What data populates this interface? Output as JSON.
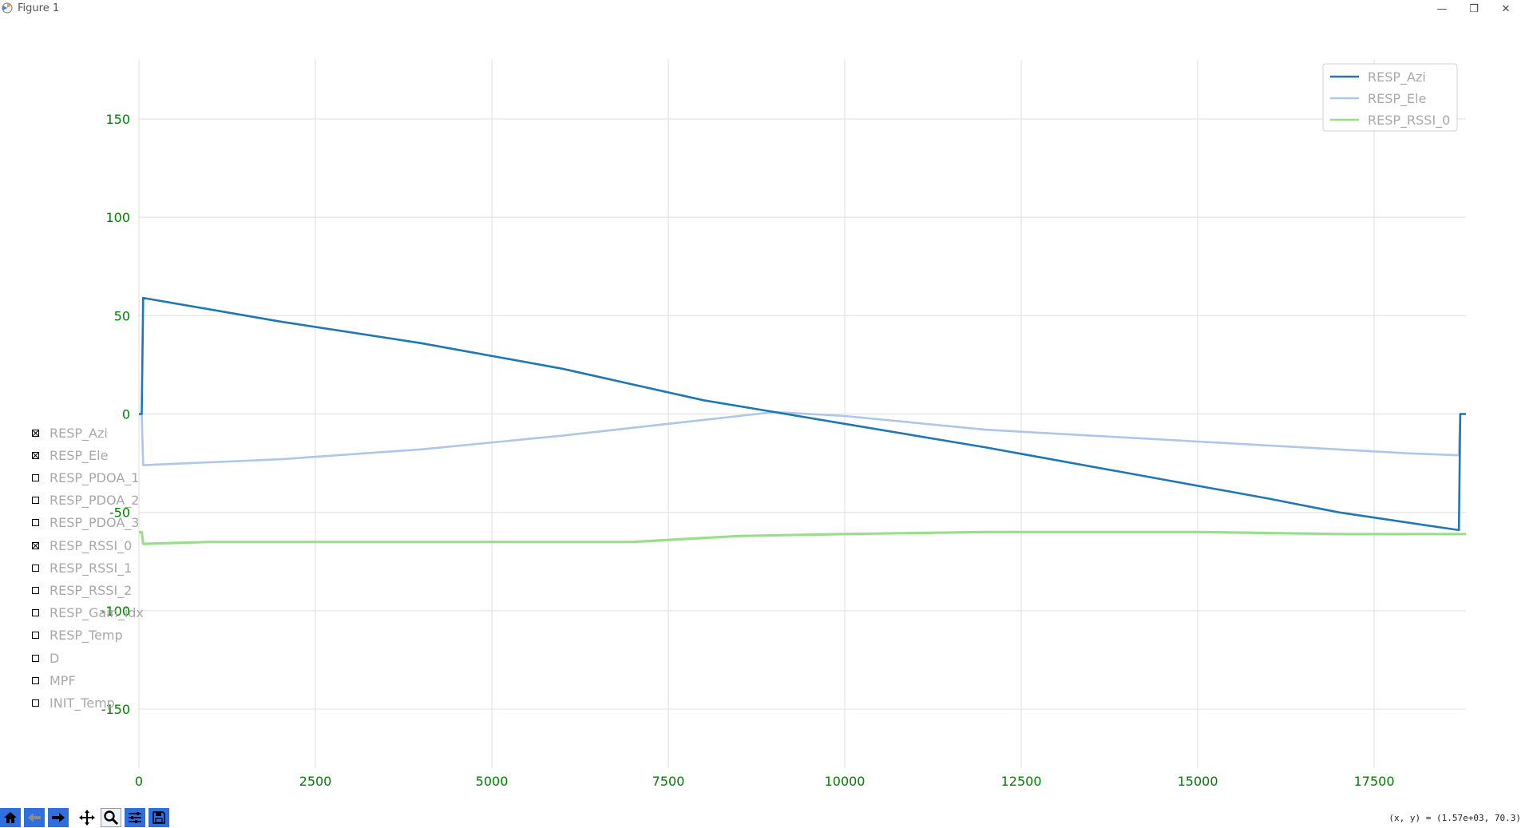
{
  "window": {
    "title": "Figure 1",
    "minimize_glyph": "—",
    "restore_glyph": "❐",
    "close_glyph": "✕"
  },
  "chart_data": {
    "type": "line",
    "title": "",
    "xlabel": "",
    "ylabel": "",
    "xlim": [
      0,
      18800
    ],
    "ylim": [
      -180,
      180
    ],
    "grid": true,
    "legend_placement": "top-right",
    "x_ticks": [
      0,
      2500,
      5000,
      7500,
      10000,
      12500,
      15000,
      17500
    ],
    "y_ticks": [
      150,
      100,
      50,
      0,
      -50,
      -100,
      -150
    ],
    "tick_color": "#008000",
    "series": [
      {
        "name": "RESP_Azi",
        "color": "#1f77b4",
        "x": [
          0,
          40,
          60,
          2000,
          4000,
          6000,
          8000,
          9000,
          10000,
          12000,
          14000,
          16000,
          17000,
          18700,
          18720,
          18760,
          18800
        ],
        "y": [
          0,
          0,
          59,
          47,
          36,
          23,
          7,
          1,
          -5,
          -17,
          -30,
          -43,
          -50,
          -59,
          0,
          0,
          0
        ]
      },
      {
        "name": "RESP_Ele",
        "color": "#aec7e8",
        "x": [
          0,
          40,
          60,
          2000,
          4000,
          6000,
          7500,
          8500,
          9000,
          10000,
          12000,
          14000,
          16000,
          18000,
          18700,
          18720,
          18800
        ],
        "y": [
          0,
          0,
          -26,
          -23,
          -18,
          -11,
          -5,
          -1,
          1,
          -1,
          -8,
          -12,
          -16,
          -20,
          -21,
          0,
          0
        ]
      },
      {
        "name": "RESP_RSSI_0",
        "color": "#98df8a",
        "x": [
          0,
          40,
          60,
          1000,
          3000,
          5000,
          7000,
          8500,
          10000,
          12000,
          13000,
          15000,
          17000,
          18700,
          18800
        ],
        "y": [
          -60,
          -60,
          -66,
          -65,
          -65,
          -65,
          -65,
          -62,
          -61,
          -60,
          -60,
          -60,
          -61,
          -61,
          -61
        ]
      }
    ],
    "check_items": [
      {
        "label": "RESP_Azi",
        "checked": true
      },
      {
        "label": "RESP_Ele",
        "checked": true
      },
      {
        "label": "RESP_PDOA_1",
        "checked": false
      },
      {
        "label": "RESP_PDOA_2",
        "checked": false
      },
      {
        "label": "RESP_PDOA_3",
        "checked": false
      },
      {
        "label": "RESP_RSSI_0",
        "checked": true
      },
      {
        "label": "RESP_RSSI_1",
        "checked": false
      },
      {
        "label": "RESP_RSSI_2",
        "checked": false
      },
      {
        "label": "RESP_Gain_idx",
        "checked": false
      },
      {
        "label": "RESP_Temp",
        "checked": false
      },
      {
        "label": "D",
        "checked": false
      },
      {
        "label": "MPF",
        "checked": false
      },
      {
        "label": "INIT_Temp",
        "checked": false
      }
    ]
  },
  "toolbar": {
    "buttons": [
      {
        "name": "home-icon",
        "style": "blue"
      },
      {
        "name": "back-icon",
        "style": "blue"
      },
      {
        "name": "forward-icon",
        "style": "blue"
      },
      {
        "name": "pan-icon",
        "style": "plain"
      },
      {
        "name": "zoom-icon",
        "style": "active"
      },
      {
        "name": "configure-subplots-icon",
        "style": "blue"
      },
      {
        "name": "save-icon",
        "style": "blue"
      }
    ],
    "coords_readout": "(x, y) = (1.57e+03, 70.3)"
  }
}
